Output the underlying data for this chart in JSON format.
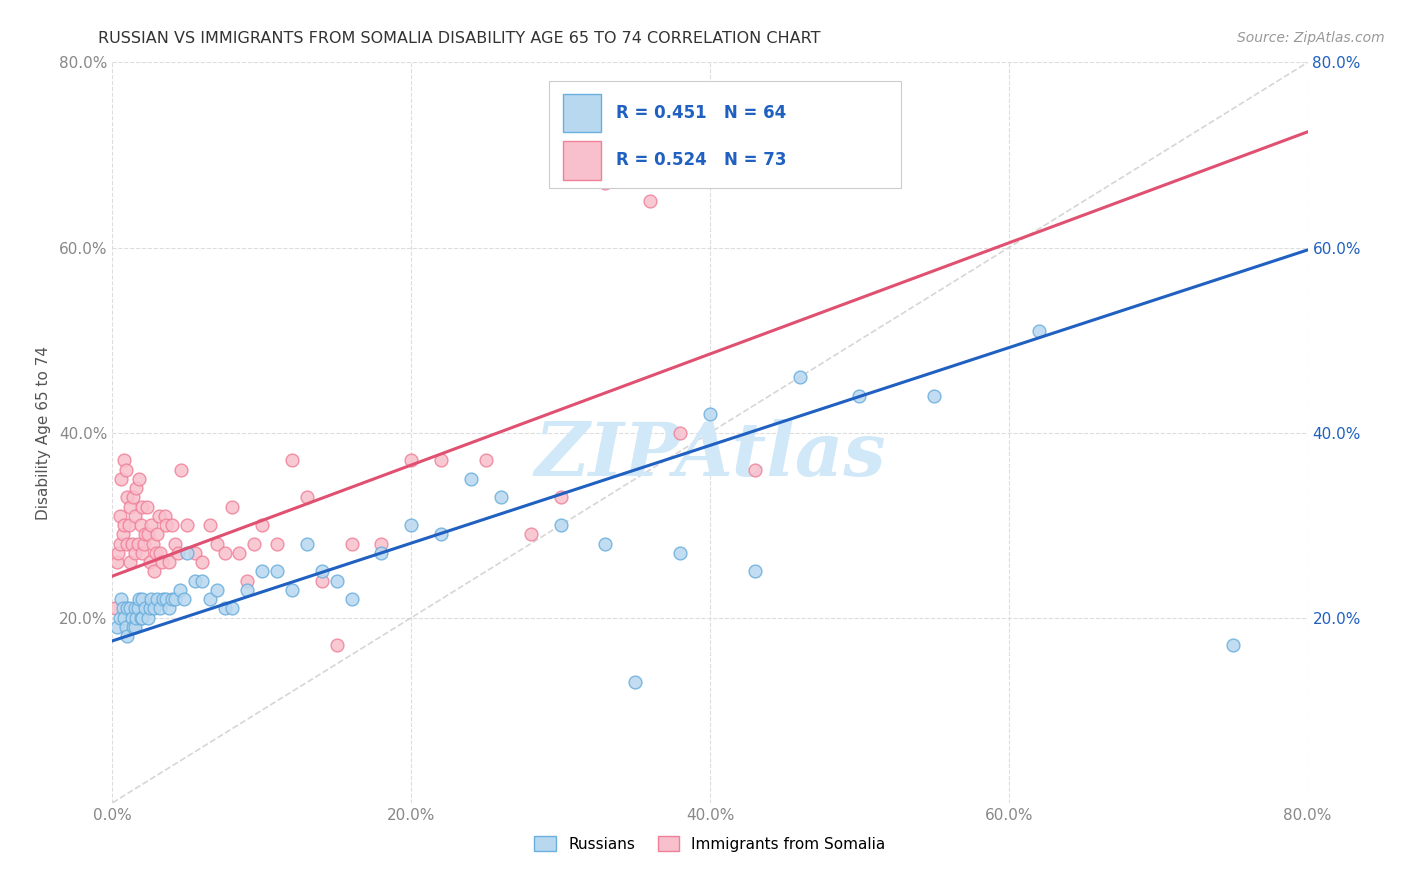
{
  "title": "RUSSIAN VS IMMIGRANTS FROM SOMALIA DISABILITY AGE 65 TO 74 CORRELATION CHART",
  "source": "Source: ZipAtlas.com",
  "ylabel": "Disability Age 65 to 74",
  "xlim": [
    0.0,
    0.8
  ],
  "ylim": [
    0.0,
    0.8
  ],
  "xticks": [
    0.0,
    0.2,
    0.4,
    0.6,
    0.8
  ],
  "yticks": [
    0.2,
    0.4,
    0.6,
    0.8
  ],
  "xticklabels": [
    "0.0%",
    "20.0%",
    "40.0%",
    "60.0%",
    "80.0%"
  ],
  "yticklabels": [
    "20.0%",
    "40.0%",
    "60.0%",
    "80.0%"
  ],
  "right_yticklabels": [
    "20.0%",
    "40.0%",
    "60.0%",
    "80.0%"
  ],
  "right_yticks": [
    0.2,
    0.4,
    0.6,
    0.8
  ],
  "russian_R": 0.451,
  "russian_N": 64,
  "somalia_R": 0.524,
  "somalia_N": 73,
  "russian_edge_color": "#6AAEDD",
  "russian_face_color": "#B8D8F0",
  "somalia_edge_color": "#F08098",
  "somalia_face_color": "#F8C0CC",
  "trend_russian_color": "#2060C0",
  "trend_somalia_color": "#E05070",
  "diagonal_color": "#CCCCCC",
  "background_color": "#FFFFFF",
  "grid_color": "#DDDDDD",
  "watermark_color": "#D0E8F8",
  "russian_x": [
    0.003,
    0.005,
    0.006,
    0.007,
    0.008,
    0.009,
    0.01,
    0.01,
    0.012,
    0.013,
    0.014,
    0.015,
    0.015,
    0.016,
    0.017,
    0.018,
    0.019,
    0.02,
    0.02,
    0.022,
    0.024,
    0.025,
    0.026,
    0.028,
    0.03,
    0.032,
    0.034,
    0.036,
    0.038,
    0.04,
    0.042,
    0.045,
    0.048,
    0.05,
    0.055,
    0.06,
    0.065,
    0.07,
    0.075,
    0.08,
    0.09,
    0.1,
    0.11,
    0.12,
    0.13,
    0.14,
    0.15,
    0.16,
    0.18,
    0.2,
    0.22,
    0.24,
    0.26,
    0.3,
    0.33,
    0.35,
    0.38,
    0.4,
    0.43,
    0.46,
    0.5,
    0.55,
    0.62,
    0.75
  ],
  "russian_y": [
    0.19,
    0.2,
    0.22,
    0.21,
    0.2,
    0.19,
    0.21,
    0.18,
    0.21,
    0.2,
    0.19,
    0.21,
    0.19,
    0.2,
    0.21,
    0.22,
    0.2,
    0.22,
    0.2,
    0.21,
    0.2,
    0.21,
    0.22,
    0.21,
    0.22,
    0.21,
    0.22,
    0.22,
    0.21,
    0.22,
    0.22,
    0.23,
    0.22,
    0.27,
    0.24,
    0.24,
    0.22,
    0.23,
    0.21,
    0.21,
    0.23,
    0.25,
    0.25,
    0.23,
    0.28,
    0.25,
    0.24,
    0.22,
    0.27,
    0.3,
    0.29,
    0.35,
    0.33,
    0.3,
    0.28,
    0.13,
    0.27,
    0.42,
    0.25,
    0.46,
    0.44,
    0.44,
    0.51,
    0.17
  ],
  "somalia_x": [
    0.002,
    0.003,
    0.004,
    0.005,
    0.005,
    0.006,
    0.007,
    0.008,
    0.008,
    0.009,
    0.01,
    0.01,
    0.011,
    0.012,
    0.012,
    0.013,
    0.014,
    0.015,
    0.015,
    0.016,
    0.017,
    0.018,
    0.019,
    0.02,
    0.02,
    0.021,
    0.022,
    0.023,
    0.024,
    0.025,
    0.026,
    0.027,
    0.028,
    0.029,
    0.03,
    0.031,
    0.032,
    0.033,
    0.035,
    0.036,
    0.038,
    0.04,
    0.042,
    0.044,
    0.046,
    0.05,
    0.055,
    0.06,
    0.065,
    0.07,
    0.075,
    0.08,
    0.085,
    0.09,
    0.095,
    0.1,
    0.11,
    0.12,
    0.13,
    0.14,
    0.15,
    0.16,
    0.18,
    0.2,
    0.22,
    0.25,
    0.28,
    0.3,
    0.33,
    0.36,
    0.38,
    0.4,
    0.43
  ],
  "somalia_y": [
    0.21,
    0.26,
    0.27,
    0.28,
    0.31,
    0.35,
    0.29,
    0.37,
    0.3,
    0.36,
    0.33,
    0.28,
    0.3,
    0.32,
    0.26,
    0.28,
    0.33,
    0.31,
    0.27,
    0.34,
    0.28,
    0.35,
    0.3,
    0.27,
    0.32,
    0.28,
    0.29,
    0.32,
    0.29,
    0.26,
    0.3,
    0.28,
    0.25,
    0.27,
    0.29,
    0.31,
    0.27,
    0.26,
    0.31,
    0.3,
    0.26,
    0.3,
    0.28,
    0.27,
    0.36,
    0.3,
    0.27,
    0.26,
    0.3,
    0.28,
    0.27,
    0.32,
    0.27,
    0.24,
    0.28,
    0.3,
    0.28,
    0.37,
    0.33,
    0.24,
    0.17,
    0.28,
    0.28,
    0.37,
    0.37,
    0.37,
    0.29,
    0.33,
    0.67,
    0.65,
    0.4,
    0.7,
    0.36
  ],
  "trend_russian_intercept": 0.175,
  "trend_russian_slope": 0.528,
  "trend_somalia_intercept": 0.245,
  "trend_somalia_slope": 0.6
}
